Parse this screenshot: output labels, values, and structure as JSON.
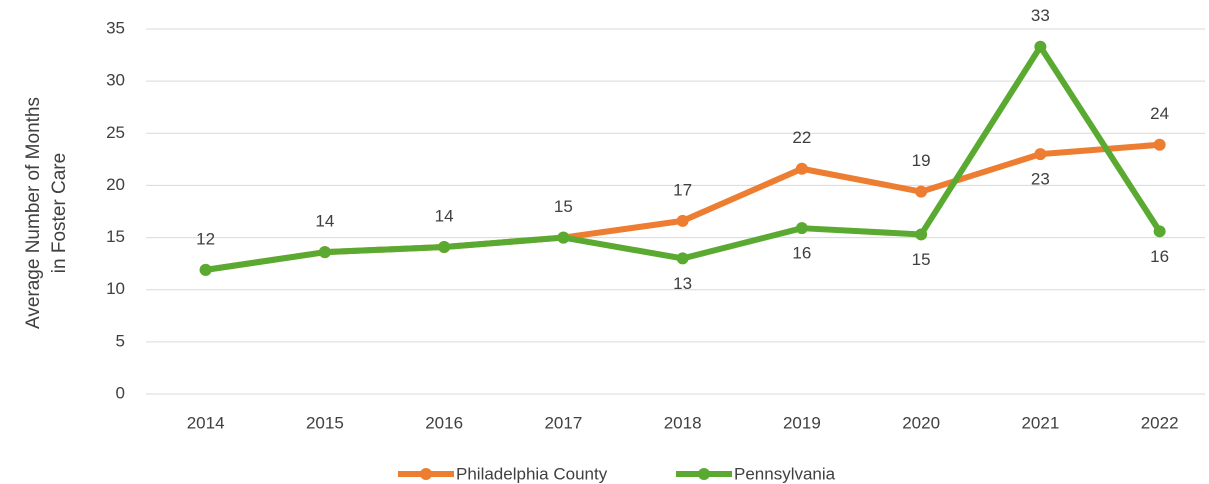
{
  "chart_data": {
    "type": "line",
    "y_label": [
      "Average Number of Months",
      "in Foster Care"
    ],
    "categories": [
      "2014",
      "2015",
      "2016",
      "2017",
      "2018",
      "2019",
      "2020",
      "2021",
      "2022"
    ],
    "series": [
      {
        "name": "Philadelphia County",
        "color": "#ed7d31",
        "values": [
          11.9,
          13.6,
          14.1,
          15.0,
          16.6,
          21.6,
          19.4,
          23.0,
          23.9
        ],
        "value_labels": [
          null,
          null,
          null,
          null,
          "17",
          "22",
          "19",
          "23",
          "24"
        ]
      },
      {
        "name": "Pennsylvania",
        "color": "#5aaa32",
        "values": [
          11.9,
          13.6,
          14.1,
          15.0,
          13.0,
          15.9,
          15.3,
          33.3,
          15.6
        ],
        "value_labels": [
          "12",
          "14",
          "14",
          "15",
          "13",
          "16",
          "15",
          "33",
          "16"
        ]
      }
    ],
    "ylim": [
      0,
      35
    ],
    "yticks": [
      0,
      5,
      10,
      15,
      20,
      25,
      30,
      35
    ],
    "grid": true,
    "legend": "bottom"
  }
}
